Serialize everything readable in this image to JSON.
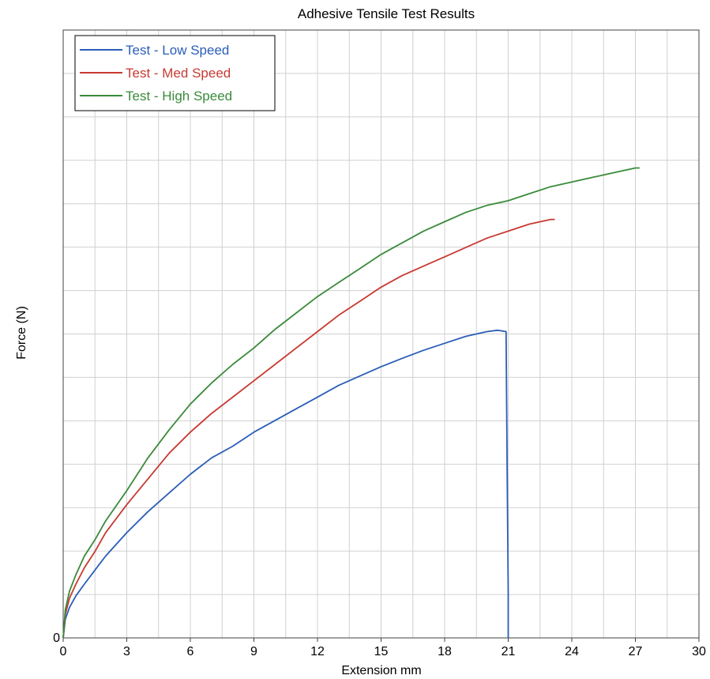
{
  "chart_data": {
    "type": "line",
    "title": "Adhesive Tensile Test Results",
    "xlabel": "Extension mm",
    "ylabel": "Force (N)",
    "xlim": [
      0,
      30
    ],
    "ylim": [
      0,
      13
    ],
    "x_ticks": [
      0,
      3,
      6,
      9,
      12,
      15,
      18,
      21,
      24,
      27,
      30
    ],
    "y_tick_labels": [
      "0"
    ],
    "grid": true,
    "legend_position": "top-left",
    "series": [
      {
        "name": "Test - Low Speed",
        "color": "#2a5db8",
        "points": [
          [
            0,
            0
          ],
          [
            0.1,
            0.4
          ],
          [
            0.3,
            0.65
          ],
          [
            0.6,
            0.9
          ],
          [
            1,
            1.15
          ],
          [
            1.5,
            1.45
          ],
          [
            2,
            1.75
          ],
          [
            3,
            2.25
          ],
          [
            4,
            2.7
          ],
          [
            5,
            3.1
          ],
          [
            6,
            3.5
          ],
          [
            7,
            3.85
          ],
          [
            8,
            4.1
          ],
          [
            9,
            4.4
          ],
          [
            10,
            4.65
          ],
          [
            11,
            4.9
          ],
          [
            12,
            5.15
          ],
          [
            13,
            5.4
          ],
          [
            14,
            5.6
          ],
          [
            15,
            5.8
          ],
          [
            16,
            5.98
          ],
          [
            17,
            6.15
          ],
          [
            18,
            6.3
          ],
          [
            19,
            6.45
          ],
          [
            20,
            6.55
          ],
          [
            20.5,
            6.58
          ],
          [
            20.9,
            6.55
          ],
          [
            20.95,
            3.5
          ],
          [
            21,
            1.0
          ],
          [
            21,
            0
          ]
        ]
      },
      {
        "name": "Test - Med Speed",
        "color": "#c73a32",
        "points": [
          [
            0,
            0
          ],
          [
            0.1,
            0.5
          ],
          [
            0.3,
            0.85
          ],
          [
            0.6,
            1.15
          ],
          [
            1,
            1.5
          ],
          [
            1.5,
            1.85
          ],
          [
            2,
            2.25
          ],
          [
            3,
            2.85
          ],
          [
            4,
            3.4
          ],
          [
            5,
            3.95
          ],
          [
            6,
            4.4
          ],
          [
            7,
            4.8
          ],
          [
            8,
            5.15
          ],
          [
            9,
            5.5
          ],
          [
            10,
            5.85
          ],
          [
            11,
            6.2
          ],
          [
            12,
            6.55
          ],
          [
            13,
            6.9
          ],
          [
            14,
            7.2
          ],
          [
            15,
            7.5
          ],
          [
            16,
            7.75
          ],
          [
            17,
            7.95
          ],
          [
            18,
            8.15
          ],
          [
            19,
            8.35
          ],
          [
            20,
            8.55
          ],
          [
            21,
            8.7
          ],
          [
            22,
            8.85
          ],
          [
            23,
            8.95
          ],
          [
            23.2,
            8.95
          ]
        ]
      },
      {
        "name": "Test - High Speed",
        "color": "#3a8a3a",
        "points": [
          [
            0,
            0
          ],
          [
            0.1,
            0.6
          ],
          [
            0.3,
            1.0
          ],
          [
            0.6,
            1.35
          ],
          [
            1,
            1.75
          ],
          [
            1.5,
            2.1
          ],
          [
            2,
            2.5
          ],
          [
            3,
            3.15
          ],
          [
            4,
            3.85
          ],
          [
            5,
            4.45
          ],
          [
            6,
            5.0
          ],
          [
            7,
            5.45
          ],
          [
            8,
            5.85
          ],
          [
            9,
            6.2
          ],
          [
            10,
            6.6
          ],
          [
            11,
            6.95
          ],
          [
            12,
            7.3
          ],
          [
            13,
            7.6
          ],
          [
            14,
            7.9
          ],
          [
            15,
            8.2
          ],
          [
            16,
            8.45
          ],
          [
            17,
            8.7
          ],
          [
            18,
            8.9
          ],
          [
            19,
            9.1
          ],
          [
            20,
            9.25
          ],
          [
            21,
            9.35
          ],
          [
            22,
            9.5
          ],
          [
            23,
            9.65
          ],
          [
            24,
            9.75
          ],
          [
            25,
            9.85
          ],
          [
            26,
            9.95
          ],
          [
            27,
            10.05
          ],
          [
            27.2,
            10.05
          ]
        ]
      }
    ]
  }
}
